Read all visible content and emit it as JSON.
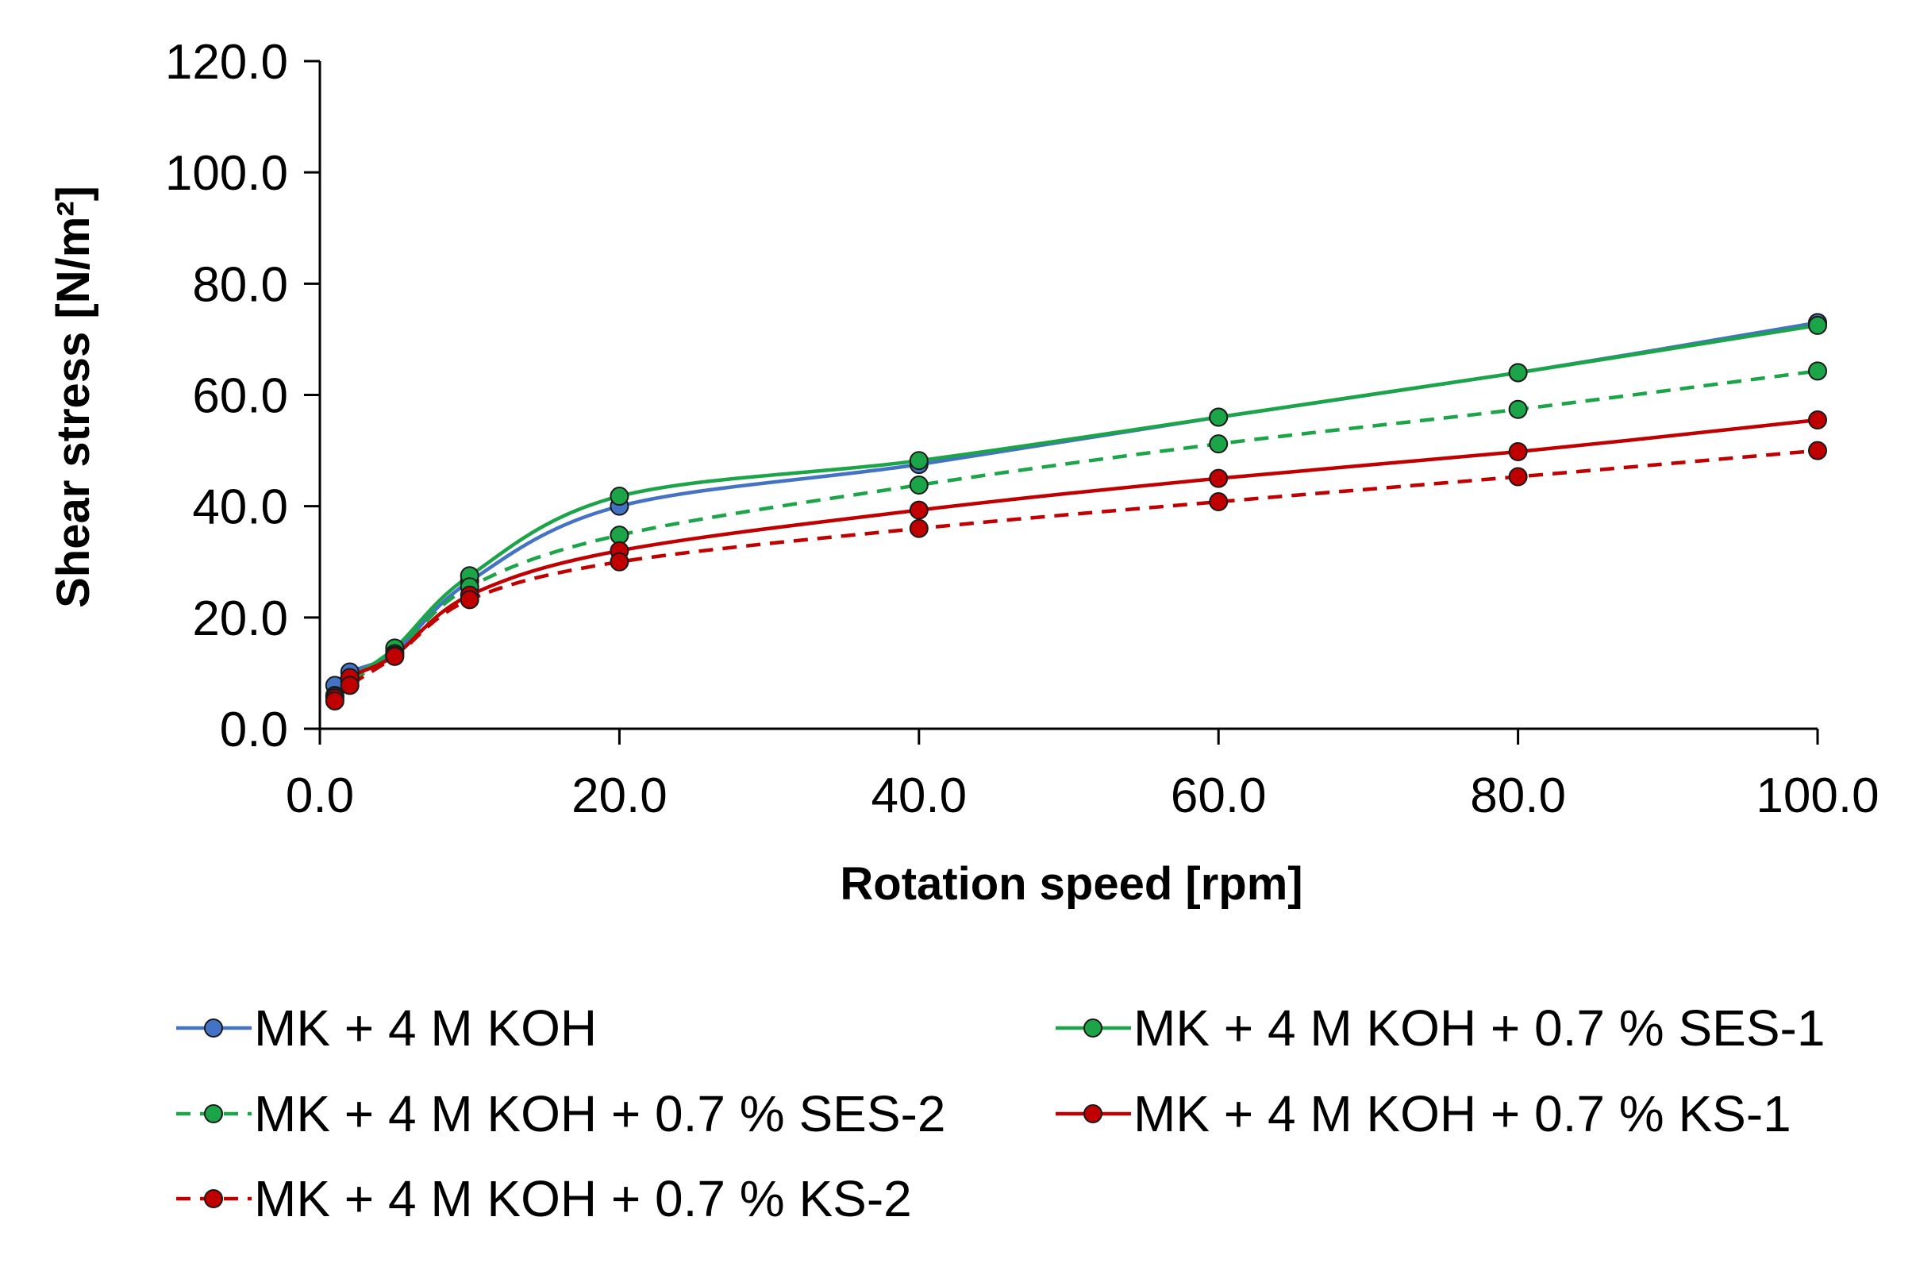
{
  "chart_data": {
    "type": "line",
    "title": "",
    "xlabel": "Rotation speed [rpm]",
    "ylabel": "Shear stress [N/m²]",
    "xlim": [
      0,
      100
    ],
    "ylim": [
      0,
      120
    ],
    "x_ticks": [
      "0.0",
      "20.0",
      "40.0",
      "60.0",
      "80.0",
      "100.0"
    ],
    "y_ticks": [
      "0.0",
      "20.0",
      "40.0",
      "60.0",
      "80.0",
      "100.0",
      "120.0"
    ],
    "grid": false,
    "legend_position": "bottom",
    "x": [
      1,
      2,
      5,
      10,
      20,
      40,
      60,
      80,
      100
    ],
    "series": [
      {
        "name": "MK + 4 M KOH",
        "color": "#4472C4",
        "dashed": false,
        "values": [
          7.8,
          10.2,
          13.8,
          26.5,
          40.0,
          47.5,
          56.0,
          64.0,
          73.0
        ]
      },
      {
        "name": "MK + 4 M KOH + 0.7 % SES-1",
        "color": "#1BA548",
        "dashed": false,
        "values": [
          6.0,
          9.0,
          14.5,
          27.5,
          41.8,
          48.2,
          56.0,
          64.0,
          72.5
        ]
      },
      {
        "name": "MK + 4 M KOH + 0.7 % SES-2",
        "color": "#1BA548",
        "dashed": true,
        "values": [
          5.8,
          8.5,
          13.5,
          25.5,
          34.8,
          43.8,
          51.2,
          57.4,
          64.3
        ]
      },
      {
        "name": "MK + 4 M KOH + 0.7 % KS-1",
        "color": "#C00000",
        "dashed": false,
        "values": [
          5.5,
          9.2,
          13.2,
          24.0,
          32.0,
          39.3,
          45.0,
          49.8,
          55.5
        ]
      },
      {
        "name": "MK + 4 M KOH + 0.7 % KS-2",
        "color": "#C00000",
        "dashed": true,
        "values": [
          5.0,
          7.8,
          13.0,
          23.2,
          30.0,
          36.0,
          40.8,
          45.3,
          50.0
        ]
      }
    ]
  }
}
